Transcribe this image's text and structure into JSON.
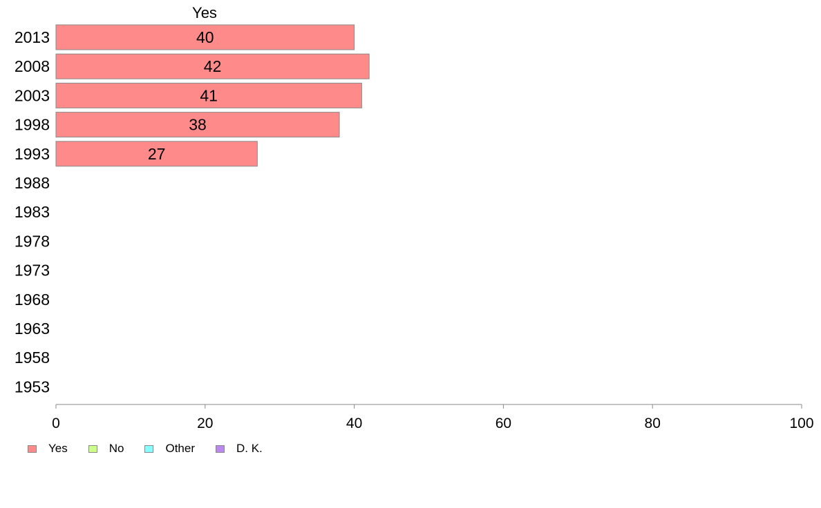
{
  "chart_data": {
    "type": "bar",
    "orientation": "horizontal",
    "stacked": true,
    "title": "Yes",
    "categories": [
      "2013",
      "2008",
      "2003",
      "1998",
      "1993",
      "1988",
      "1983",
      "1978",
      "1973",
      "1968",
      "1963",
      "1958",
      "1953"
    ],
    "series": [
      {
        "name": "Yes",
        "color": "#ff8a8a",
        "values": [
          40,
          42,
          41,
          38,
          27,
          null,
          null,
          null,
          null,
          null,
          null,
          null,
          null
        ]
      },
      {
        "name": "No",
        "color": "#ccff88",
        "values": [
          null,
          null,
          null,
          null,
          null,
          null,
          null,
          null,
          null,
          null,
          null,
          null,
          null
        ]
      },
      {
        "name": "Other",
        "color": "#88ffff",
        "values": [
          null,
          null,
          null,
          null,
          null,
          null,
          null,
          null,
          null,
          null,
          null,
          null,
          null
        ]
      },
      {
        "name": "D. K.",
        "color": "#bb88ee",
        "values": [
          null,
          null,
          null,
          null,
          null,
          null,
          null,
          null,
          null,
          null,
          null,
          null,
          null
        ]
      }
    ],
    "data_labels": [
      "40",
      "42",
      "41",
      "38",
      "27",
      "",
      "",
      "",
      "",
      "",
      "",
      "",
      ""
    ],
    "xlim": [
      0,
      100
    ],
    "xticks": [
      "0",
      "20",
      "40",
      "60",
      "80",
      "100"
    ],
    "grid": false,
    "legend_position": "bottom-left"
  }
}
